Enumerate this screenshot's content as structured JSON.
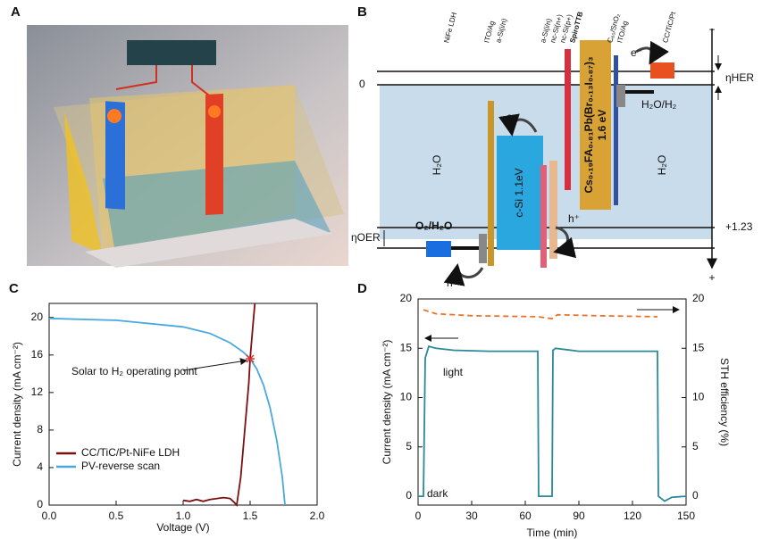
{
  "panels": [
    "A",
    "B",
    "C",
    "D"
  ],
  "diagram": {
    "layer_labels": [
      "NiFe LDH",
      "ITO/Ag",
      "a-Si(i/n)",
      "a-Si(i/n)",
      "nc-Si(n+)",
      "nc-Si(p+)",
      "SpiroTTB",
      "C₆₀/SnO₂",
      "ITO/Ag",
      "CC/TiC/Pt"
    ],
    "zero": "0",
    "eta_her": "ηHER",
    "her_couple": "H₂O/H₂",
    "electron_top": "e⁻",
    "electron_mid": "e⁻",
    "water_left": "H₂O",
    "water_right": "H₂O",
    "csi": "c-Si 1.1eV",
    "perovskite": "Cs₀.₁₉FA₀.₈₁Pb(Br₀.₁₃I₀.₈₇)₃",
    "perovskite_gap": "1.6 eV",
    "hole_mid": "h⁺",
    "hole_bottom": "h⁺",
    "oer_level": "+1.23",
    "eta_oer": "ηOER",
    "oer_couple": "O₂/H₂O",
    "minus": "−",
    "plus": "+"
  },
  "chart_data": [
    {
      "type": "line",
      "xlabel": "Voltage (V)",
      "ylabel": "Current density (mA cm⁻²)",
      "xlim": [
        0,
        2.0
      ],
      "ylim": [
        0,
        21.5
      ],
      "xticks": [
        {
          "value": 0,
          "label": "0.0"
        },
        {
          "value": 0.5,
          "label": "0.5"
        },
        {
          "value": 1.0,
          "label": "1.0"
        },
        {
          "value": 1.5,
          "label": "1.5"
        },
        {
          "value": 2.0,
          "label": "2.0"
        }
      ],
      "yticks": [
        0,
        4,
        8,
        12,
        16,
        20
      ],
      "legend": "lower left",
      "series": [
        {
          "name": "CC/TiC/Pt-NiFe LDH",
          "color": "#7a1010",
          "x": [
            1.0,
            1.05,
            1.1,
            1.15,
            1.2,
            1.3,
            1.35,
            1.38,
            1.4,
            1.43,
            1.46,
            1.49,
            1.5,
            1.52,
            1.535
          ],
          "values": [
            0.5,
            0.4,
            0.6,
            0.4,
            0.6,
            0.8,
            0.7,
            0.3,
            0,
            3,
            8,
            13,
            15.6,
            19,
            21.5
          ]
        },
        {
          "name": "PV-reverse scan",
          "color": "#4aa8e0",
          "x": [
            0,
            0.5,
            1.0,
            1.2,
            1.35,
            1.45,
            1.5,
            1.55,
            1.6,
            1.65,
            1.7,
            1.74,
            1.76
          ],
          "values": [
            19.9,
            19.7,
            19.0,
            18.3,
            17.3,
            16.3,
            15.6,
            14.5,
            12.8,
            10.3,
            6.8,
            3,
            0
          ]
        }
      ],
      "marker": {
        "x": 1.5,
        "y": 15.6,
        "color": "#e03030"
      },
      "annotation": "Solar to H₂ operating point"
    },
    {
      "type": "line",
      "xlabel": "Time (min)",
      "ylabel": "Current density (mA cm⁻²)",
      "y2label": "STH efficiency (%)",
      "xlim": [
        0,
        150
      ],
      "ylim": [
        -0.9,
        20
      ],
      "y2lim": [
        -0.9,
        20
      ],
      "xticks": [
        0,
        30,
        60,
        90,
        120,
        150
      ],
      "yticks": [
        0,
        5,
        10,
        15,
        20
      ],
      "y2ticks": [
        0,
        5,
        10,
        15,
        20
      ],
      "series": [
        {
          "color": "#2a8a9a",
          "x": [
            0,
            3,
            4,
            6,
            10,
            20,
            40,
            67,
            67.5,
            75,
            75.5,
            77,
            90,
            134,
            134.5,
            138,
            142,
            150
          ],
          "values": [
            0,
            0,
            14,
            15.2,
            15,
            14.8,
            14.7,
            14.7,
            0,
            0,
            14.8,
            15,
            14.7,
            14.7,
            0,
            -0.5,
            -0.1,
            0
          ]
        },
        {
          "color": "#e8742a",
          "axis": "y2",
          "dash": true,
          "x": [
            3,
            10,
            30,
            67,
            75,
            78,
            100,
            134
          ],
          "values": [
            18.9,
            18.5,
            18.3,
            18.2,
            18.0,
            18.4,
            18.3,
            18.2
          ]
        }
      ],
      "notes": [
        "light",
        "dark"
      ]
    }
  ]
}
